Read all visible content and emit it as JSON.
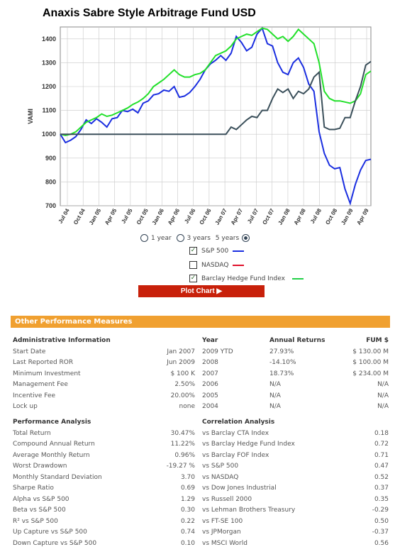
{
  "title": "Anaxis Sabre Style Arbitrage Fund USD",
  "chart_data": {
    "type": "line",
    "title": "Anaxis Sabre Style Arbitrage Fund USD",
    "ylabel": "VAMI",
    "ylim": [
      700,
      1450
    ],
    "yticks": [
      700,
      800,
      900,
      1000,
      1100,
      1200,
      1300,
      1400
    ],
    "xtick_labels": [
      "Jul 04",
      "Oct 04",
      "Jan 05",
      "Apr 05",
      "Jul 05",
      "Oct 05",
      "Jan 06",
      "Apr 06",
      "Jul 06",
      "Oct 06",
      "Jan 07",
      "Apr 07",
      "Jul 07",
      "Oct 07",
      "Jan 08",
      "Apr 08",
      "Jul 08",
      "Oct 08",
      "Jan 09",
      "Apr 09"
    ],
    "series": [
      {
        "name": "S&P 500",
        "color": "#1a2ee0",
        "values": [
          1000,
          965,
          975,
          990,
          1020,
          1060,
          1045,
          1065,
          1050,
          1030,
          1065,
          1070,
          1100,
          1095,
          1105,
          1090,
          1130,
          1140,
          1165,
          1170,
          1185,
          1180,
          1200,
          1155,
          1160,
          1175,
          1200,
          1230,
          1270,
          1295,
          1310,
          1330,
          1310,
          1340,
          1410,
          1385,
          1350,
          1365,
          1420,
          1445,
          1380,
          1370,
          1300,
          1260,
          1250,
          1300,
          1320,
          1280,
          1210,
          1180,
          1010,
          920,
          870,
          855,
          860,
          770,
          710,
          790,
          850,
          890,
          895
        ]
      },
      {
        "name": "Barclay Hedge Fund Index",
        "color": "#22e02a",
        "values": [
          1000,
          995,
          1000,
          1010,
          1030,
          1050,
          1060,
          1070,
          1085,
          1075,
          1080,
          1090,
          1100,
          1110,
          1125,
          1135,
          1150,
          1170,
          1200,
          1215,
          1230,
          1250,
          1270,
          1250,
          1240,
          1240,
          1250,
          1255,
          1270,
          1300,
          1330,
          1340,
          1350,
          1370,
          1400,
          1410,
          1420,
          1415,
          1430,
          1445,
          1440,
          1420,
          1400,
          1410,
          1390,
          1410,
          1440,
          1420,
          1400,
          1380,
          1300,
          1180,
          1150,
          1140,
          1140,
          1135,
          1130,
          1140,
          1170,
          1250,
          1265
        ]
      },
      {
        "name": "Fund",
        "color": "#3a4f5a",
        "values": [
          1000,
          1000,
          1000,
          1000,
          1000,
          1000,
          1000,
          1000,
          1000,
          1000,
          1000,
          1000,
          1000,
          1000,
          1000,
          1000,
          1000,
          1000,
          1000,
          1000,
          1000,
          1000,
          1000,
          1000,
          1000,
          1000,
          1000,
          1000,
          1000,
          1000,
          1000,
          1000,
          1000,
          1030,
          1020,
          1040,
          1060,
          1075,
          1070,
          1100,
          1100,
          1150,
          1190,
          1175,
          1190,
          1150,
          1180,
          1170,
          1190,
          1240,
          1260,
          1030,
          1020,
          1020,
          1025,
          1070,
          1070,
          1140,
          1200,
          1290,
          1305
        ]
      }
    ]
  },
  "controls": {
    "radio_1year": "1 year",
    "radio_3years": "3 years",
    "radio_5years": "5 years",
    "sp500": "S&P 500",
    "nasdaq": "NASDAQ",
    "barclay": "Barclay Hedge Fund Index",
    "plot_button": "Plot Chart ▶"
  },
  "colors": {
    "sp500": "#1a2ee0",
    "nasdaq": "#e0102a",
    "barclay": "#22d048",
    "accent": "#f0a030",
    "button": "#c8200a"
  },
  "section_title": "Other Performance Measures",
  "admin": {
    "header": "Administrative Information",
    "rows": [
      [
        "Start Date",
        "Jan 2007"
      ],
      [
        "Last Reported ROR",
        "Jun 2009"
      ],
      [
        "Minimum Investment",
        "$ 100 K"
      ],
      [
        "Management Fee",
        "2.50%"
      ],
      [
        "Incentive Fee",
        "20.00%"
      ],
      [
        "Lock up",
        "none"
      ]
    ]
  },
  "annual": {
    "headers": [
      "Year",
      "Annual Returns",
      "FUM $"
    ],
    "rows": [
      [
        "2009 YTD",
        "27.93%",
        "$ 130.00 M"
      ],
      [
        "2008",
        "-14.10%",
        "$ 100.00 M"
      ],
      [
        "2007",
        "18.73%",
        "$ 234.00 M"
      ],
      [
        "2006",
        "N/A",
        "N/A"
      ],
      [
        "2005",
        "N/A",
        "N/A"
      ],
      [
        "2004",
        "N/A",
        "N/A"
      ]
    ]
  },
  "perf": {
    "header": "Performance Analysis",
    "rows": [
      [
        "Total Return",
        "30.47%"
      ],
      [
        "Compound Annual Return",
        "11.22%"
      ],
      [
        "Average Monthly Return",
        "0.96%"
      ],
      [
        "Worst Drawdown",
        "-19.27 %"
      ],
      [
        "Monthly Standard Deviation",
        "3.70"
      ],
      [
        "Sharpe Ratio",
        "0.69"
      ],
      [
        "Alpha vs S&P 500",
        "1.29"
      ],
      [
        "Beta vs S&P 500",
        "0.30"
      ],
      [
        "R² vs S&P 500",
        "0.22"
      ],
      [
        "Up Capture vs S&P 500",
        "0.74"
      ],
      [
        "Down Capture vs S&P 500",
        "0.10"
      ]
    ]
  },
  "corr": {
    "header": "Correlation Analysis",
    "rows": [
      [
        "vs Barclay CTA Index",
        "0.18"
      ],
      [
        "vs Barclay Hedge Fund Index",
        "0.72"
      ],
      [
        "vs Barclay FOF Index",
        "0.71"
      ],
      [
        "vs S&P 500",
        "0.47"
      ],
      [
        "vs NASDAQ",
        "0.52"
      ],
      [
        "vs Dow Jones Industrial",
        "0.37"
      ],
      [
        "vs Russell 2000",
        "0.35"
      ],
      [
        "vs Lehman Brothers Treasury",
        "-0.29"
      ],
      [
        "vs FT-SE 100",
        "0.50"
      ],
      [
        "vs JPMorgan",
        "-0.37"
      ],
      [
        "vs MSCI World",
        "0.56"
      ]
    ]
  }
}
